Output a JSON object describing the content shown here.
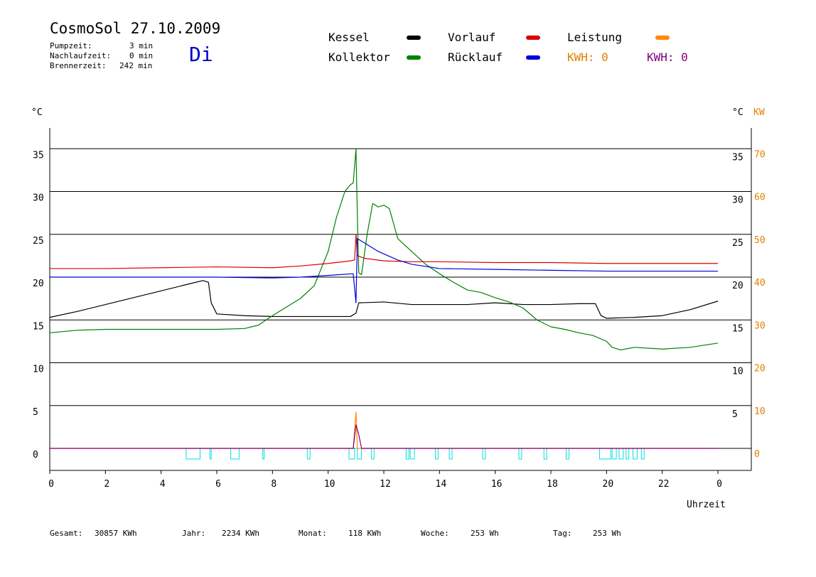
{
  "header": {
    "title": "CosmoSol 27.10.2009",
    "day": "Di",
    "pump_label": "Pumpzeit:",
    "pump_value": "3 min",
    "nachlauf_label": "Nachlaufzeit:",
    "nachlauf_value": "0 min",
    "brenner_label": "Brennerzeit:",
    "brenner_value": "242 min"
  },
  "legend": {
    "kessel": "Kessel",
    "kollektor": "Kollektor",
    "vorlauf": "Vorlauf",
    "ruecklauf": "Rücklauf",
    "leistung": "Leistung",
    "kwh1": "KWH: 0",
    "kwh2": "KWH: 0"
  },
  "colors": {
    "kessel": "#000000",
    "kollektor": "#008000",
    "vorlauf": "#dd0000",
    "ruecklauf": "#0000dd",
    "leistung": "#ff8800",
    "kwh2": "#800080",
    "pump": "#00e0e0",
    "axis_right2": "#e08000"
  },
  "axes": {
    "left_unit": "°C",
    "right_unit": "°C",
    "right_unit2": "KW",
    "xlabel": "Uhrzeit"
  },
  "footer": [
    {
      "label": "Gesamt:",
      "value": "30857 KWh"
    },
    {
      "label": "Jahr:",
      "value": "2234 KWh"
    },
    {
      "label": "Monat:",
      "value": "118 KWh"
    },
    {
      "label": "Woche:",
      "value": "253 Wh"
    },
    {
      "label": "Tag:",
      "value": "253 Wh"
    }
  ],
  "chart_data": {
    "type": "line",
    "title": "CosmoSol 27.10.2009",
    "xlabel": "Uhrzeit",
    "ylabel": "°C",
    "xlim": [
      0,
      24
    ],
    "ylim": [
      -2.5,
      37.5
    ],
    "ylim_right2": [
      -5,
      75
    ],
    "x_tick_labels": [
      "0",
      "2",
      "4",
      "6",
      "8",
      "10",
      "12",
      "14",
      "16",
      "18",
      "20",
      "22",
      "0"
    ],
    "y_ticks": [
      0,
      5,
      10,
      15,
      20,
      25,
      30,
      35
    ],
    "y2_ticks": [
      0,
      10,
      20,
      30,
      40,
      50,
      60,
      70
    ],
    "y_right_ticks": [
      5,
      10,
      15,
      20,
      25,
      30,
      35
    ],
    "grid": "horizontal",
    "series": [
      {
        "name": "Kessel",
        "color": "#000000",
        "points": [
          [
            0,
            15.3
          ],
          [
            1,
            16.0
          ],
          [
            2,
            16.8
          ],
          [
            3,
            17.6
          ],
          [
            4,
            18.4
          ],
          [
            5,
            19.2
          ],
          [
            5.5,
            19.6
          ],
          [
            5.7,
            19.4
          ],
          [
            5.8,
            17.0
          ],
          [
            6.0,
            15.7
          ],
          [
            7.0,
            15.5
          ],
          [
            8.0,
            15.4
          ],
          [
            9.0,
            15.4
          ],
          [
            10.0,
            15.4
          ],
          [
            10.8,
            15.4
          ],
          [
            11.0,
            15.8
          ],
          [
            11.1,
            17.0
          ],
          [
            12,
            17.1
          ],
          [
            13,
            16.8
          ],
          [
            14,
            16.8
          ],
          [
            15,
            16.8
          ],
          [
            16,
            17.0
          ],
          [
            17,
            16.8
          ],
          [
            18,
            16.8
          ],
          [
            19,
            16.9
          ],
          [
            19.6,
            16.9
          ],
          [
            19.8,
            15.5
          ],
          [
            20,
            15.2
          ],
          [
            21,
            15.3
          ],
          [
            22,
            15.5
          ],
          [
            23,
            16.2
          ],
          [
            24,
            17.2
          ]
        ]
      },
      {
        "name": "Kollektor",
        "color": "#008000",
        "points": [
          [
            0,
            13.5
          ],
          [
            1,
            13.8
          ],
          [
            2,
            13.9
          ],
          [
            3,
            13.9
          ],
          [
            4,
            13.9
          ],
          [
            5,
            13.9
          ],
          [
            6,
            13.9
          ],
          [
            7,
            14.0
          ],
          [
            7.5,
            14.4
          ],
          [
            8,
            15.5
          ],
          [
            8.5,
            16.5
          ],
          [
            9,
            17.5
          ],
          [
            9.5,
            19
          ],
          [
            10,
            23
          ],
          [
            10.3,
            27
          ],
          [
            10.6,
            30
          ],
          [
            10.8,
            30.8
          ],
          [
            10.9,
            31
          ],
          [
            11.0,
            35
          ],
          [
            11.05,
            27
          ],
          [
            11.1,
            20.5
          ],
          [
            11.2,
            20.3
          ],
          [
            11.4,
            25
          ],
          [
            11.6,
            28.6
          ],
          [
            11.8,
            28.2
          ],
          [
            12.0,
            28.4
          ],
          [
            12.2,
            28
          ],
          [
            12.5,
            24.5
          ],
          [
            13.0,
            23
          ],
          [
            13.5,
            21.5
          ],
          [
            14,
            20.4
          ],
          [
            14.5,
            19.4
          ],
          [
            15,
            18.5
          ],
          [
            15.5,
            18.2
          ],
          [
            16,
            17.6
          ],
          [
            16.5,
            17.1
          ],
          [
            17,
            16.4
          ],
          [
            17.5,
            15
          ],
          [
            18,
            14.2
          ],
          [
            18.5,
            13.9
          ],
          [
            19,
            13.5
          ],
          [
            19.5,
            13.2
          ],
          [
            20,
            12.5
          ],
          [
            20.2,
            11.8
          ],
          [
            20.5,
            11.5
          ],
          [
            21,
            11.8
          ],
          [
            22,
            11.6
          ],
          [
            23,
            11.8
          ],
          [
            24,
            12.3
          ]
        ]
      },
      {
        "name": "Vorlauf",
        "color": "#dd0000",
        "points": [
          [
            0,
            21.0
          ],
          [
            2,
            21.0
          ],
          [
            4,
            21.1
          ],
          [
            6,
            21.2
          ],
          [
            8,
            21.1
          ],
          [
            9,
            21.3
          ],
          [
            10,
            21.6
          ],
          [
            10.8,
            21.9
          ],
          [
            10.95,
            22
          ],
          [
            11.0,
            25
          ],
          [
            11.05,
            22.5
          ],
          [
            11.3,
            22.2
          ],
          [
            12,
            21.9
          ],
          [
            13,
            21.8
          ],
          [
            14,
            21.8
          ],
          [
            16,
            21.7
          ],
          [
            18,
            21.7
          ],
          [
            20,
            21.6
          ],
          [
            22,
            21.6
          ],
          [
            24,
            21.6
          ]
        ]
      },
      {
        "name": "Rücklauf",
        "color": "#0000dd",
        "points": [
          [
            0,
            20.0
          ],
          [
            2,
            20.0
          ],
          [
            4,
            20.0
          ],
          [
            6,
            20.0
          ],
          [
            8,
            19.9
          ],
          [
            9,
            20.0
          ],
          [
            10,
            20.2
          ],
          [
            10.9,
            20.4
          ],
          [
            11.0,
            17.0
          ],
          [
            11.05,
            24.5
          ],
          [
            11.3,
            24.0
          ],
          [
            11.8,
            23
          ],
          [
            12.5,
            22
          ],
          [
            13,
            21.5
          ],
          [
            14,
            21
          ],
          [
            16,
            20.9
          ],
          [
            18,
            20.8
          ],
          [
            20,
            20.7
          ],
          [
            22,
            20.7
          ],
          [
            24,
            20.7
          ]
        ]
      },
      {
        "name": "Leistung",
        "color": "#ff8800",
        "points": [
          [
            0,
            0
          ],
          [
            10.9,
            0
          ],
          [
            11.0,
            8.5
          ],
          [
            11.05,
            0
          ],
          [
            24,
            0
          ]
        ]
      },
      {
        "name": "KWH",
        "color": "#800080",
        "points": [
          [
            0,
            0
          ],
          [
            10.9,
            0
          ],
          [
            11.0,
            5.5
          ],
          [
            11.1,
            3.2
          ],
          [
            11.2,
            0
          ],
          [
            24,
            0
          ]
        ]
      }
    ],
    "pump_pulses": [
      [
        4.9,
        5.4
      ],
      [
        5.75,
        5.8
      ],
      [
        6.5,
        6.8
      ],
      [
        7.65,
        7.7
      ],
      [
        9.25,
        9.35
      ],
      [
        10.75,
        10.95
      ],
      [
        11.05,
        11.2
      ],
      [
        11.55,
        11.65
      ],
      [
        12.8,
        12.9
      ],
      [
        12.95,
        13.1
      ],
      [
        13.85,
        13.95
      ],
      [
        14.35,
        14.45
      ],
      [
        15.55,
        15.65
      ],
      [
        16.85,
        16.95
      ],
      [
        17.75,
        17.85
      ],
      [
        18.55,
        18.65
      ],
      [
        19.75,
        20.15
      ],
      [
        20.2,
        20.35
      ],
      [
        20.45,
        20.6
      ],
      [
        20.7,
        20.8
      ],
      [
        20.95,
        21.1
      ],
      [
        21.25,
        21.35
      ]
    ]
  }
}
